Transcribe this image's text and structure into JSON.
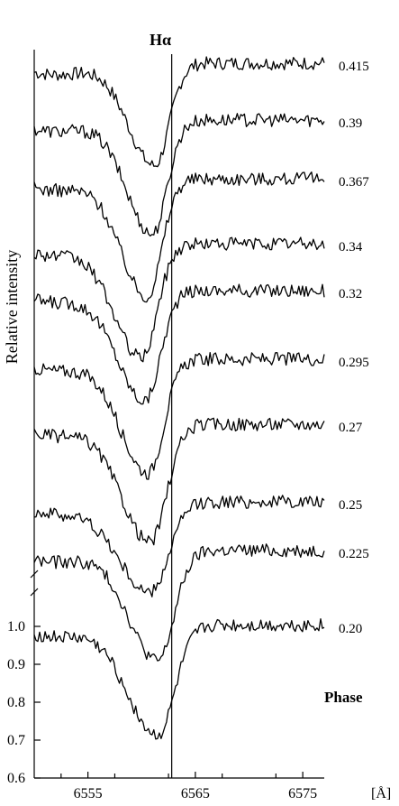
{
  "chart_data": {
    "type": "line",
    "title": "",
    "xlabel": "[Å]",
    "ylabel": "Relative intensity",
    "line_label": "Hα",
    "line_wavelength": 6562.8,
    "legend_title": "Phase",
    "xlim": [
      6550,
      6577
    ],
    "x_ticks": [
      6555,
      6565,
      6575
    ],
    "x_tick_labels": [
      "6555",
      "6565",
      "6575"
    ],
    "ylim_bottom_spectrum": [
      0.6,
      1.05
    ],
    "y_ticks": [
      0.6,
      0.7,
      0.8,
      0.9,
      1.0
    ],
    "y_tick_labels": [
      "0.6",
      "0.7",
      "0.8",
      "0.9",
      "1.0"
    ],
    "axis_break": true,
    "series": [
      {
        "name": "0.415",
        "continuum": 1.0,
        "line_center": 6561.2,
        "depth": 0.27,
        "width": 1.8
      },
      {
        "name": "0.39",
        "continuum": 1.0,
        "line_center": 6561.0,
        "depth": 0.3,
        "width": 1.8
      },
      {
        "name": "0.367",
        "continuum": 1.0,
        "line_center": 6560.5,
        "depth": 0.31,
        "width": 1.8
      },
      {
        "name": "0.34",
        "continuum": 1.0,
        "line_center": 6560.0,
        "depth": 0.3,
        "width": 1.9
      },
      {
        "name": "0.32",
        "continuum": 1.0,
        "line_center": 6560.3,
        "depth": 0.29,
        "width": 1.9
      },
      {
        "name": "0.295",
        "continuum": 1.0,
        "line_center": 6560.6,
        "depth": 0.3,
        "width": 1.9
      },
      {
        "name": "0.27",
        "continuum": 1.0,
        "line_center": 6560.8,
        "depth": 0.31,
        "width": 2.0
      },
      {
        "name": "0.25",
        "continuum": 1.0,
        "line_center": 6560.8,
        "depth": 0.24,
        "width": 2.2
      },
      {
        "name": "0.225",
        "continuum": 1.0,
        "line_center": 6561.5,
        "depth": 0.29,
        "width": 2.0
      },
      {
        "name": "0.20",
        "continuum": 1.0,
        "line_center": 6561.5,
        "depth": 0.29,
        "width": 2.1
      }
    ]
  }
}
